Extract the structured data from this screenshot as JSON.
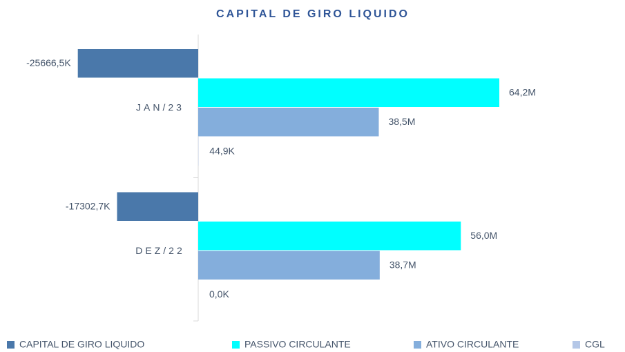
{
  "chart_data": {
    "type": "hbar",
    "title": "CAPITAL DE GIRO LIQUIDO",
    "categories": [
      "JAN/23",
      "DEZ/22"
    ],
    "series": [
      {
        "name": "CAPITAL DE GIRO LIQUIDO",
        "color": "#4a78aa",
        "values": [
          -25666500,
          -17302700
        ],
        "value_labels": [
          "-25666,5K",
          "-17302,7K"
        ]
      },
      {
        "name": "PASSIVO CIRCULANTE",
        "color": "#00ffff",
        "values": [
          64200000,
          56000000
        ],
        "value_labels": [
          "64,2M",
          "56,0M"
        ]
      },
      {
        "name": "ATIVO CIRCULANTE",
        "color": "#84aedc",
        "values": [
          38500000,
          38700000
        ],
        "value_labels": [
          "38,5M",
          "38,7M"
        ]
      },
      {
        "name": "CGL",
        "color": "#b4c7e7",
        "values": [
          44900,
          0
        ],
        "value_labels": [
          "44,9K",
          "0,0K"
        ]
      }
    ],
    "legend": "bottom"
  }
}
